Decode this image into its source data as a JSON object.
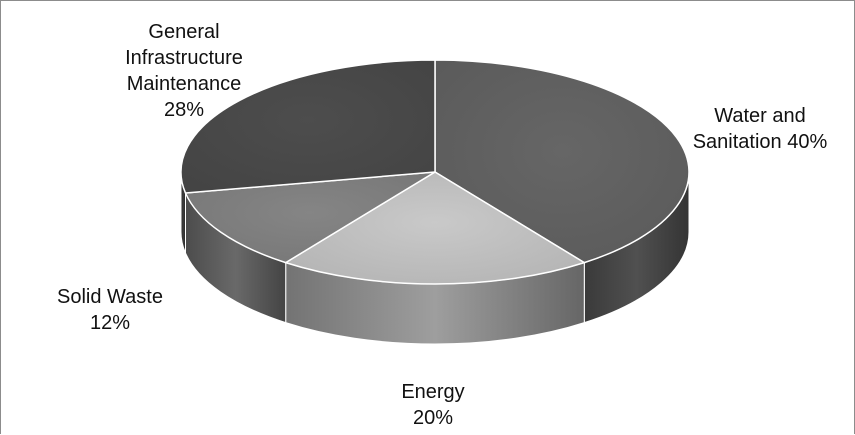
{
  "chart_data": {
    "type": "pie",
    "title": "",
    "three_d": true,
    "legend": "none",
    "slices": [
      {
        "name": "Water and Sanitation",
        "value": 40,
        "label_lines": [
          "Water and",
          "Sanitation 40%"
        ],
        "color": "#5e5e5e"
      },
      {
        "name": "Energy",
        "value": 20,
        "label_lines": [
          "Energy",
          "20%"
        ],
        "color": "#bababa"
      },
      {
        "name": "Solid Waste",
        "value": 12,
        "label_lines": [
          "Solid Waste",
          "12%"
        ],
        "color": "#7b7b7b"
      },
      {
        "name": "General Infrastructure Maintenance",
        "value": 28,
        "label_lines": [
          "General",
          "Infrastructure",
          "Maintenance",
          "28%"
        ],
        "color": "#474747"
      }
    ]
  }
}
